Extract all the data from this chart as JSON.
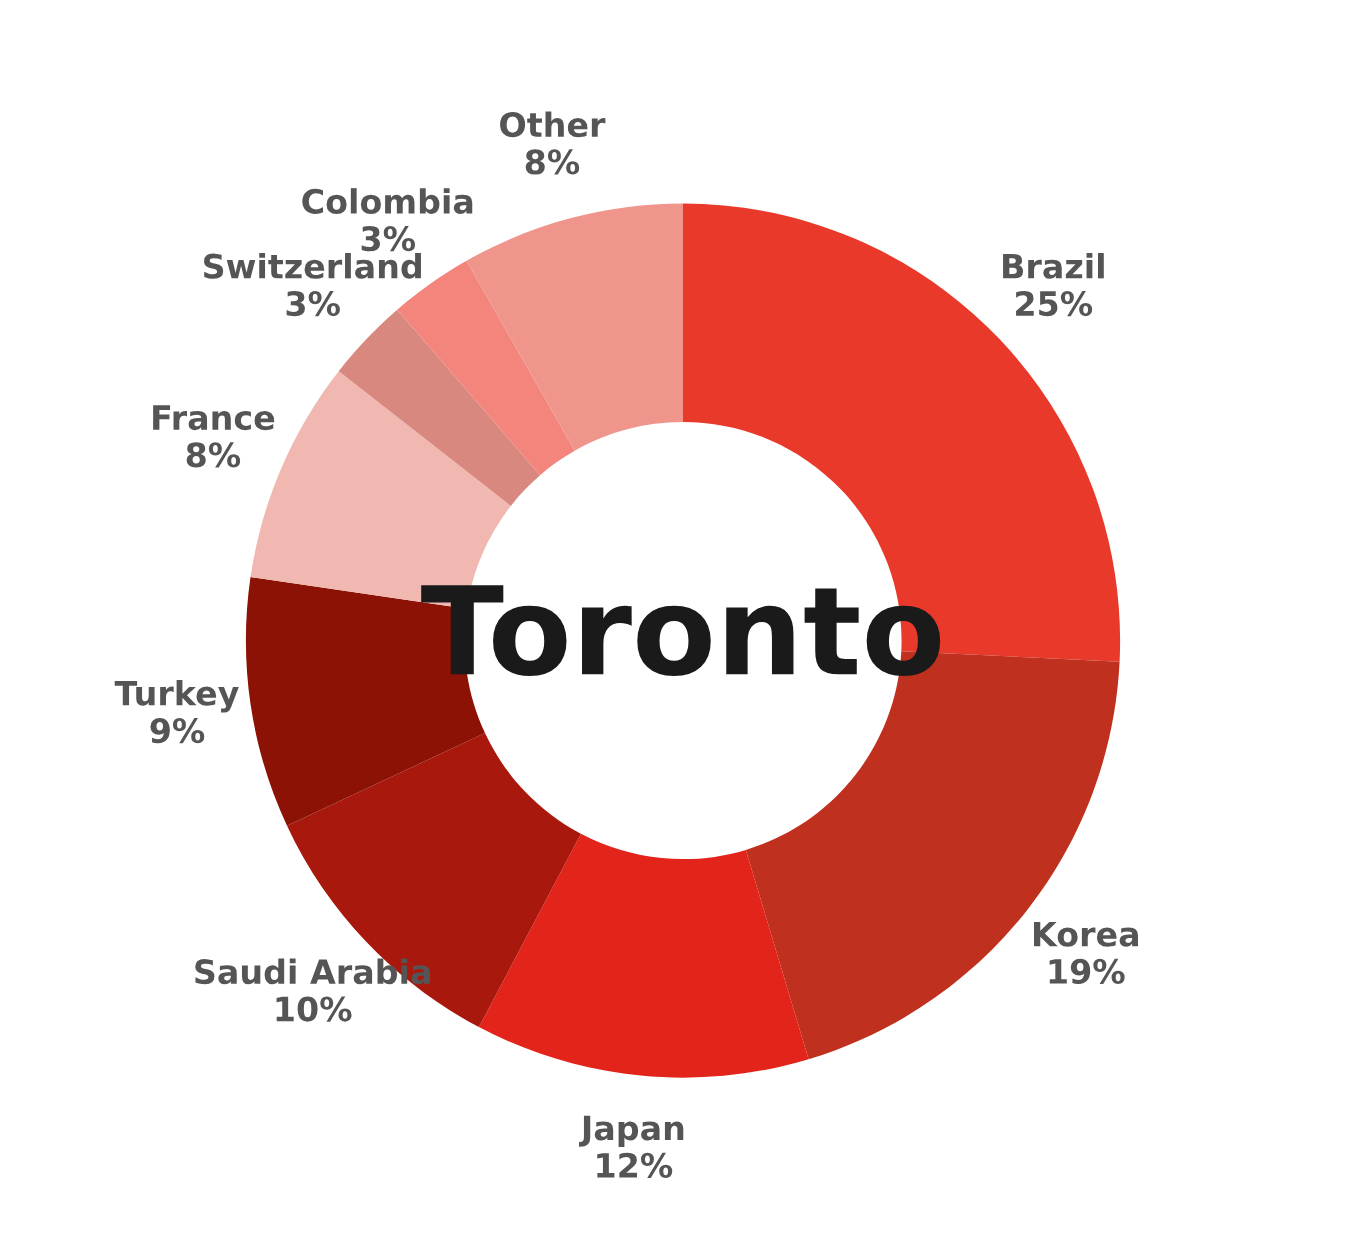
{
  "chart_data": {
    "type": "donut",
    "title": "Toronto",
    "categories": [
      "Brazil",
      "Korea",
      "Japan",
      "Saudi Arabia",
      "Turkey",
      "France",
      "Switzerland",
      "Colombia",
      "Other"
    ],
    "values": [
      25,
      19,
      12,
      10,
      9,
      8,
      3,
      3,
      8
    ],
    "value_labels": [
      "25%",
      "19%",
      "12%",
      "10%",
      "9%",
      "8%",
      "3%",
      "3%",
      "8%"
    ],
    "colors": [
      "#e8392a",
      "#c0301f",
      "#e3241a",
      "#a8180d",
      "#8b1204",
      "#f0b8b0",
      "#d98880",
      "#f4857c",
      "#ef958c"
    ],
    "legend": false
  }
}
